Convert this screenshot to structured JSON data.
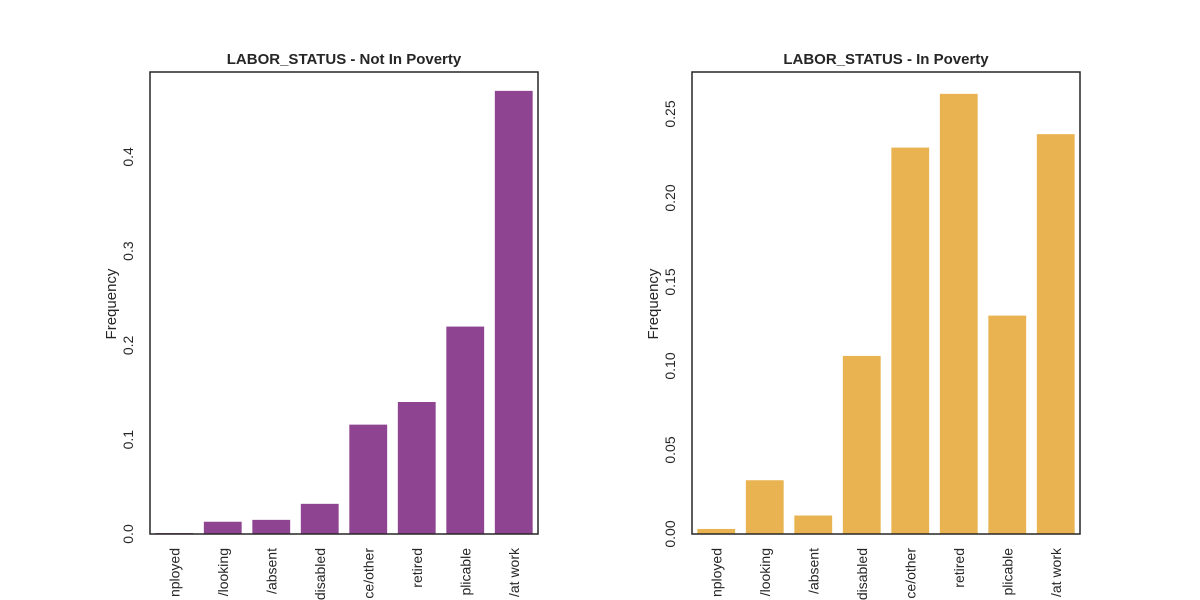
{
  "chart_data": [
    {
      "type": "bar",
      "title": "LABOR_STATUS - Not In Poverty",
      "xlabel": "",
      "ylabel": "Frequency",
      "ylim": [
        0,
        0.49
      ],
      "yticks": [
        "0.0",
        "0.1",
        "0.2",
        "0.3",
        "0.4"
      ],
      "yticks_values": [
        0.0,
        0.1,
        0.2,
        0.3,
        0.4
      ],
      "categories": [
        "nployed",
        "/looking",
        "/absent",
        "disabled",
        "ce/other",
        "retired",
        "plicable",
        "/at work"
      ],
      "values": [
        0.001,
        0.013,
        0.015,
        0.032,
        0.116,
        0.14,
        0.22,
        0.47
      ],
      "color": "#8e4490",
      "grid": false
    },
    {
      "type": "bar",
      "title": "LABOR_STATUS - In Poverty",
      "xlabel": "",
      "ylabel": "Frequency",
      "ylim": [
        0,
        0.275
      ],
      "yticks": [
        "0.00",
        "0.05",
        "0.10",
        "0.15",
        "0.20",
        "0.25"
      ],
      "yticks_values": [
        0.0,
        0.05,
        0.1,
        0.15,
        0.2,
        0.25
      ],
      "categories": [
        "nployed",
        "/looking",
        "/absent",
        "disabled",
        "ce/other",
        "retired",
        "plicable",
        "/at work"
      ],
      "values": [
        0.003,
        0.032,
        0.011,
        0.106,
        0.23,
        0.262,
        0.13,
        0.238
      ],
      "color": "#e8b350",
      "grid": false
    }
  ]
}
